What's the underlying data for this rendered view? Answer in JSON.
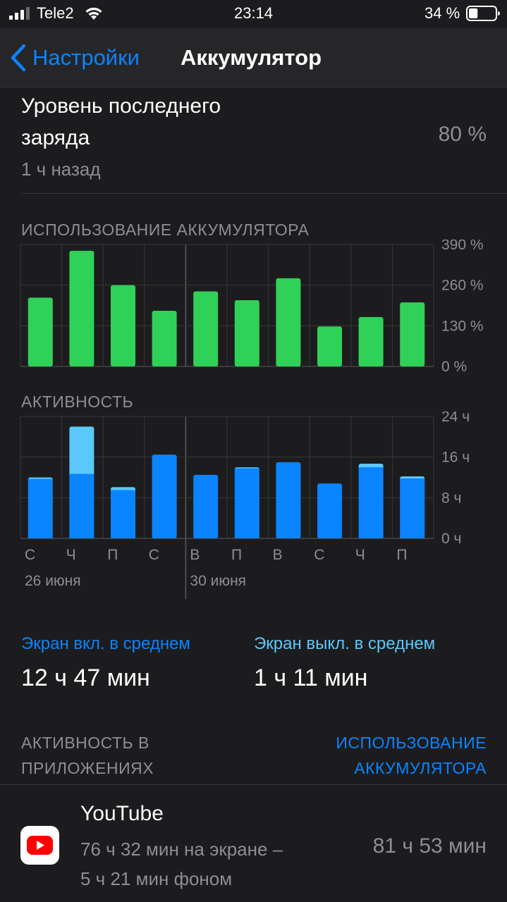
{
  "status_bar": {
    "carrier": "Tele2",
    "time": "23:14",
    "battery_percent": "34 %",
    "battery_level": 0.34
  },
  "nav": {
    "back_label": "Настройки",
    "title": "Аккумулятор"
  },
  "last_charge": {
    "title": "Уровень последнего заряда",
    "time_ago": "1 ч назад",
    "value": "80 %"
  },
  "battery_usage": {
    "header": "ИСПОЛЬЗОВАНИЕ АККУМУЛЯТОРА"
  },
  "activity": {
    "header": "АКТИВНОСТЬ"
  },
  "colors": {
    "usage_bar": "#30d158",
    "screen_on": "#0a84ff",
    "screen_off": "#5ac8fa",
    "accent": "#0a84ff"
  },
  "chart_data": [
    {
      "type": "bar",
      "title": "ИСПОЛЬЗОВАНИЕ АККУМУЛЯТОРА",
      "categories": [
        "С",
        "Ч",
        "П",
        "С",
        "В",
        "П",
        "В",
        "С",
        "Ч",
        "П"
      ],
      "values": [
        220,
        370,
        260,
        178,
        240,
        212,
        282,
        128,
        158,
        205
      ],
      "yticks": [
        "390 %",
        "260 %",
        "130 %",
        "0 %"
      ],
      "ylim": [
        0,
        390
      ],
      "grid": true
    },
    {
      "type": "bar",
      "title": "АКТИВНОСТЬ",
      "categories": [
        "С",
        "Ч",
        "П",
        "С",
        "В",
        "П",
        "В",
        "С",
        "Ч",
        "П"
      ],
      "date_labels": [
        "26 июня",
        "30 июня"
      ],
      "series": [
        {
          "values": [
            11.7,
            12.7,
            9.5,
            16.5,
            12.5,
            13.8,
            15.0,
            10.8,
            14.0,
            11.8
          ]
        },
        {
          "values": [
            0.3,
            9.3,
            0.6,
            0,
            0,
            0.2,
            0,
            0,
            0.7,
            0.4
          ]
        }
      ],
      "yticks": [
        "24 ч",
        "16 ч",
        "8 ч",
        "0 ч"
      ],
      "ylim": [
        0,
        24
      ],
      "stacked": true,
      "grid": true
    }
  ],
  "averages": {
    "screen_on_label": "Экран вкл. в среднем",
    "screen_on_value": "12 ч 47 мин",
    "screen_off_label": "Экран выкл. в среднем",
    "screen_off_value": "1 ч 11 мин"
  },
  "app_activity": {
    "header": "АКТИВНОСТЬ В ПРИЛОЖЕНИЯХ",
    "toggle_label": "ИСПОЛЬЗОВАНИЕ АККУМУЛЯТОРА",
    "apps": [
      {
        "name": "YouTube",
        "icon": "youtube-icon",
        "detail_on_screen": "76 ч 32 мин на экране –",
        "detail_background": "5 ч 21 мин фоном",
        "total": "81 ч 53 мин"
      }
    ]
  }
}
